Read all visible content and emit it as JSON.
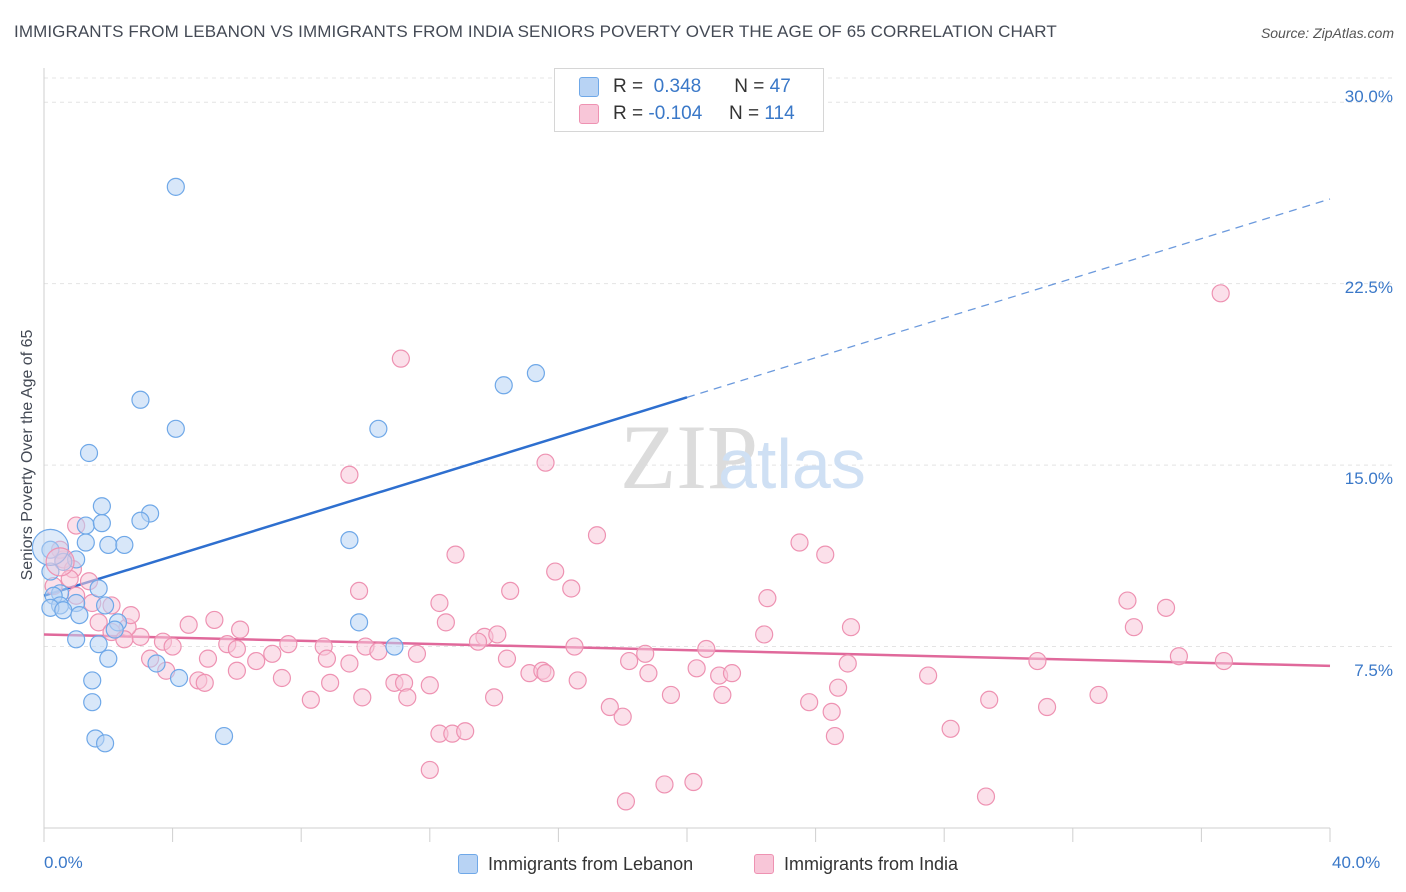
{
  "title": "IMMIGRANTS FROM LEBANON VS IMMIGRANTS FROM INDIA SENIORS POVERTY OVER THE AGE OF 65 CORRELATION CHART",
  "source": "Source: ZipAtlas.com",
  "watermark": {
    "zip": "ZIP",
    "atlas": "atlas"
  },
  "legend": {
    "lebanon": {
      "r_label": "R =",
      "r_value": "0.348",
      "n_label": "N =",
      "n_value": "47"
    },
    "india": {
      "r_label": "R =",
      "r_value": "-0.104",
      "n_label": "N =",
      "n_value": "114"
    }
  },
  "chart_data": {
    "type": "scatter",
    "title": "IMMIGRANTS FROM LEBANON VS IMMIGRANTS FROM INDIA SENIORS POVERTY OVER THE AGE OF 65 CORRELATION CHART",
    "xlabel": "",
    "ylabel": "Seniors Poverty Over the Age of 65",
    "xlim": [
      0,
      40
    ],
    "ylim": [
      0,
      31
    ],
    "x_tick_labels": [
      "0.0%",
      "40.0%"
    ],
    "y_ticks": [
      7.5,
      15.0,
      22.5,
      30.0
    ],
    "y_tick_labels": [
      "7.5%",
      "15.0%",
      "22.5%",
      "30.0%"
    ],
    "grid": true,
    "legend_position": "top-center",
    "series": [
      {
        "name": "Immigrants from Lebanon",
        "color": "#6fa8e8",
        "fill": "#b8d3f4",
        "trend": {
          "x0": 0,
          "y0": 9.6,
          "x1": 20,
          "y1": 17.8,
          "dashed_to_x": 40,
          "dashed_to_y": 26.0,
          "color": "#2e6fcf"
        },
        "points": [
          [
            4.1,
            26.5
          ],
          [
            3.0,
            17.7
          ],
          [
            4.1,
            16.5
          ],
          [
            10.4,
            16.5
          ],
          [
            14.3,
            18.3
          ],
          [
            15.3,
            18.8
          ],
          [
            1.4,
            15.5
          ],
          [
            1.8,
            13.3
          ],
          [
            3.3,
            13.0
          ],
          [
            1.3,
            12.5
          ],
          [
            1.8,
            12.6
          ],
          [
            3.0,
            12.7
          ],
          [
            1.3,
            11.8
          ],
          [
            2.0,
            11.7
          ],
          [
            2.5,
            11.7
          ],
          [
            9.5,
            11.9
          ],
          [
            1.0,
            11.1
          ],
          [
            0.6,
            11.0
          ],
          [
            0.2,
            10.6
          ],
          [
            0.2,
            11.5
          ],
          [
            1.7,
            9.9
          ],
          [
            0.5,
            9.7
          ],
          [
            0.3,
            9.6
          ],
          [
            1.9,
            9.2
          ],
          [
            0.5,
            9.2
          ],
          [
            0.2,
            9.1
          ],
          [
            1.0,
            9.3
          ],
          [
            0.6,
            9.0
          ],
          [
            1.1,
            8.8
          ],
          [
            2.3,
            8.5
          ],
          [
            2.2,
            8.2
          ],
          [
            1.0,
            7.8
          ],
          [
            1.7,
            7.6
          ],
          [
            10.9,
            7.5
          ],
          [
            9.8,
            8.5
          ],
          [
            3.5,
            6.8
          ],
          [
            2.0,
            7.0
          ],
          [
            1.5,
            6.1
          ],
          [
            4.2,
            6.2
          ],
          [
            1.5,
            5.2
          ],
          [
            5.6,
            3.8
          ],
          [
            1.6,
            3.7
          ],
          [
            1.9,
            3.5
          ]
        ]
      },
      {
        "name": "Immigrants from India",
        "color": "#ee92b2",
        "fill": "#f8c6d8",
        "trend": {
          "x0": 0,
          "y0": 8.0,
          "x1": 40,
          "y1": 6.7,
          "color": "#e0699b"
        },
        "points": [
          [
            36.6,
            22.1
          ],
          [
            11.1,
            19.4
          ],
          [
            15.6,
            15.1
          ],
          [
            9.5,
            14.6
          ],
          [
            1.0,
            12.5
          ],
          [
            17.2,
            12.1
          ],
          [
            23.5,
            11.8
          ],
          [
            24.3,
            11.3
          ],
          [
            12.8,
            11.3
          ],
          [
            0.6,
            11.1
          ],
          [
            0.9,
            10.7
          ],
          [
            15.9,
            10.6
          ],
          [
            16.4,
            9.9
          ],
          [
            9.8,
            9.8
          ],
          [
            14.5,
            9.8
          ],
          [
            22.5,
            9.5
          ],
          [
            12.3,
            9.3
          ],
          [
            33.7,
            9.4
          ],
          [
            34.9,
            9.1
          ],
          [
            1.5,
            9.3
          ],
          [
            2.1,
            9.2
          ],
          [
            5.3,
            8.6
          ],
          [
            12.5,
            8.5
          ],
          [
            4.5,
            8.4
          ],
          [
            3.0,
            7.9
          ],
          [
            1.7,
            8.5
          ],
          [
            2.6,
            8.3
          ],
          [
            6.1,
            8.2
          ],
          [
            2.1,
            8.1
          ],
          [
            3.7,
            7.7
          ],
          [
            4.0,
            7.5
          ],
          [
            5.7,
            7.6
          ],
          [
            6.0,
            7.4
          ],
          [
            7.6,
            7.6
          ],
          [
            8.7,
            7.5
          ],
          [
            10.0,
            7.5
          ],
          [
            10.4,
            7.3
          ],
          [
            13.7,
            7.9
          ],
          [
            14.1,
            8.0
          ],
          [
            16.5,
            7.5
          ],
          [
            20.6,
            7.4
          ],
          [
            22.4,
            8.0
          ],
          [
            25.1,
            8.3
          ],
          [
            33.9,
            8.3
          ],
          [
            3.3,
            7.0
          ],
          [
            5.1,
            7.0
          ],
          [
            6.6,
            6.9
          ],
          [
            7.1,
            7.2
          ],
          [
            8.8,
            7.0
          ],
          [
            9.5,
            6.8
          ],
          [
            11.6,
            7.2
          ],
          [
            13.5,
            7.7
          ],
          [
            14.4,
            7.0
          ],
          [
            15.1,
            6.4
          ],
          [
            15.5,
            6.5
          ],
          [
            18.2,
            6.9
          ],
          [
            18.7,
            7.2
          ],
          [
            20.3,
            6.6
          ],
          [
            25.0,
            6.8
          ],
          [
            30.9,
            6.9
          ],
          [
            35.3,
            7.1
          ],
          [
            36.7,
            6.9
          ],
          [
            4.8,
            6.1
          ],
          [
            5.0,
            6.0
          ],
          [
            7.4,
            6.2
          ],
          [
            8.9,
            6.0
          ],
          [
            10.9,
            6.0
          ],
          [
            11.2,
            6.0
          ],
          [
            12.0,
            5.9
          ],
          [
            15.6,
            6.4
          ],
          [
            16.6,
            6.1
          ],
          [
            18.8,
            6.4
          ],
          [
            19.5,
            5.5
          ],
          [
            21.0,
            6.3
          ],
          [
            21.4,
            6.4
          ],
          [
            24.7,
            5.8
          ],
          [
            27.5,
            6.3
          ],
          [
            3.8,
            6.5
          ],
          [
            6.0,
            6.5
          ],
          [
            2.5,
            7.8
          ],
          [
            9.9,
            5.4
          ],
          [
            11.3,
            5.4
          ],
          [
            14.0,
            5.4
          ],
          [
            8.3,
            5.3
          ],
          [
            17.6,
            5.0
          ],
          [
            21.1,
            5.5
          ],
          [
            23.8,
            5.2
          ],
          [
            24.5,
            4.8
          ],
          [
            29.4,
            5.3
          ],
          [
            31.2,
            5.0
          ],
          [
            32.8,
            5.5
          ],
          [
            18.0,
            4.6
          ],
          [
            28.2,
            4.1
          ],
          [
            24.6,
            3.8
          ],
          [
            12.3,
            3.9
          ],
          [
            12.7,
            3.9
          ],
          [
            13.1,
            4.0
          ],
          [
            12.0,
            2.4
          ],
          [
            19.3,
            1.8
          ],
          [
            20.2,
            1.9
          ],
          [
            18.1,
            1.1
          ],
          [
            29.3,
            1.3
          ],
          [
            0.5,
            11.5
          ],
          [
            0.8,
            10.3
          ],
          [
            0.3,
            10.0
          ],
          [
            1.0,
            9.6
          ],
          [
            1.4,
            10.2
          ],
          [
            2.7,
            8.8
          ]
        ]
      }
    ]
  },
  "bottom_legend": [
    {
      "label": "Immigrants from Lebanon"
    },
    {
      "label": "Immigrants from India"
    }
  ]
}
